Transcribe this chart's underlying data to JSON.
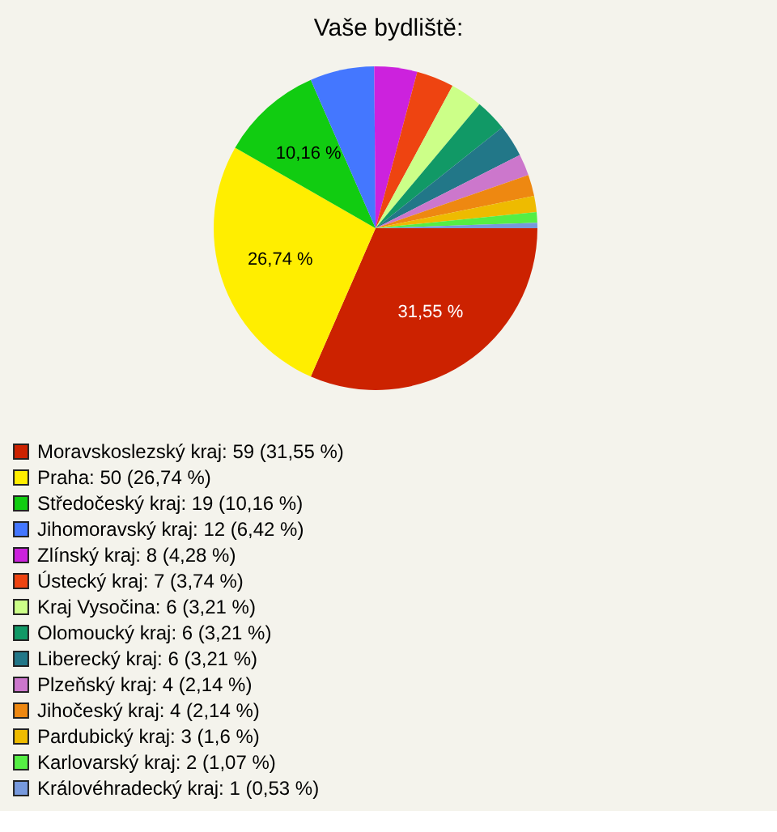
{
  "chart_data": {
    "type": "pie",
    "title": "Vaše bydliště:",
    "categories": [
      "Moravskoslezský kraj: 59 (31,55 %)",
      "Praha: 50 (26,74 %)",
      "Středočeský kraj: 19 (10,16 %)",
      "Jihomoravský kraj: 12 (6,42 %)",
      "Zlínský kraj: 8 (4,28 %)",
      "Ústecký kraj: 7 (3,74 %)",
      "Kraj Vysočina: 6 (3,21 %)",
      "Olomoucký kraj: 6 (3,21 %)",
      "Liberecký kraj: 6 (3,21 %)",
      "Plzeňský kraj: 4 (2,14 %)",
      "Jihočeský kraj: 4 (2,14 %)",
      "Pardubický kraj: 3 (1,6 %)",
      "Karlovarský kraj: 2 (1,07 %)",
      "Královéhradecký kraj: 1 (0,53 %)"
    ],
    "values": [
      31.55,
      26.74,
      10.16,
      6.42,
      4.28,
      3.74,
      3.21,
      3.21,
      3.21,
      2.14,
      2.14,
      1.6,
      1.07,
      0.53
    ],
    "colors": [
      "#cc2200",
      "#ffee00",
      "#11cc11",
      "#4477ff",
      "#cc22dd",
      "#ee4411",
      "#ccff88",
      "#119966",
      "#227788",
      "#cc77cc",
      "#ee8811",
      "#eebb00",
      "#55ee44",
      "#7799dd"
    ],
    "value_labels": [
      "31,55 %",
      "26,74 %",
      "10,16 %",
      null,
      null,
      null,
      null,
      null,
      null,
      null,
      null,
      null,
      null,
      null
    ],
    "legend": "bottom left"
  }
}
